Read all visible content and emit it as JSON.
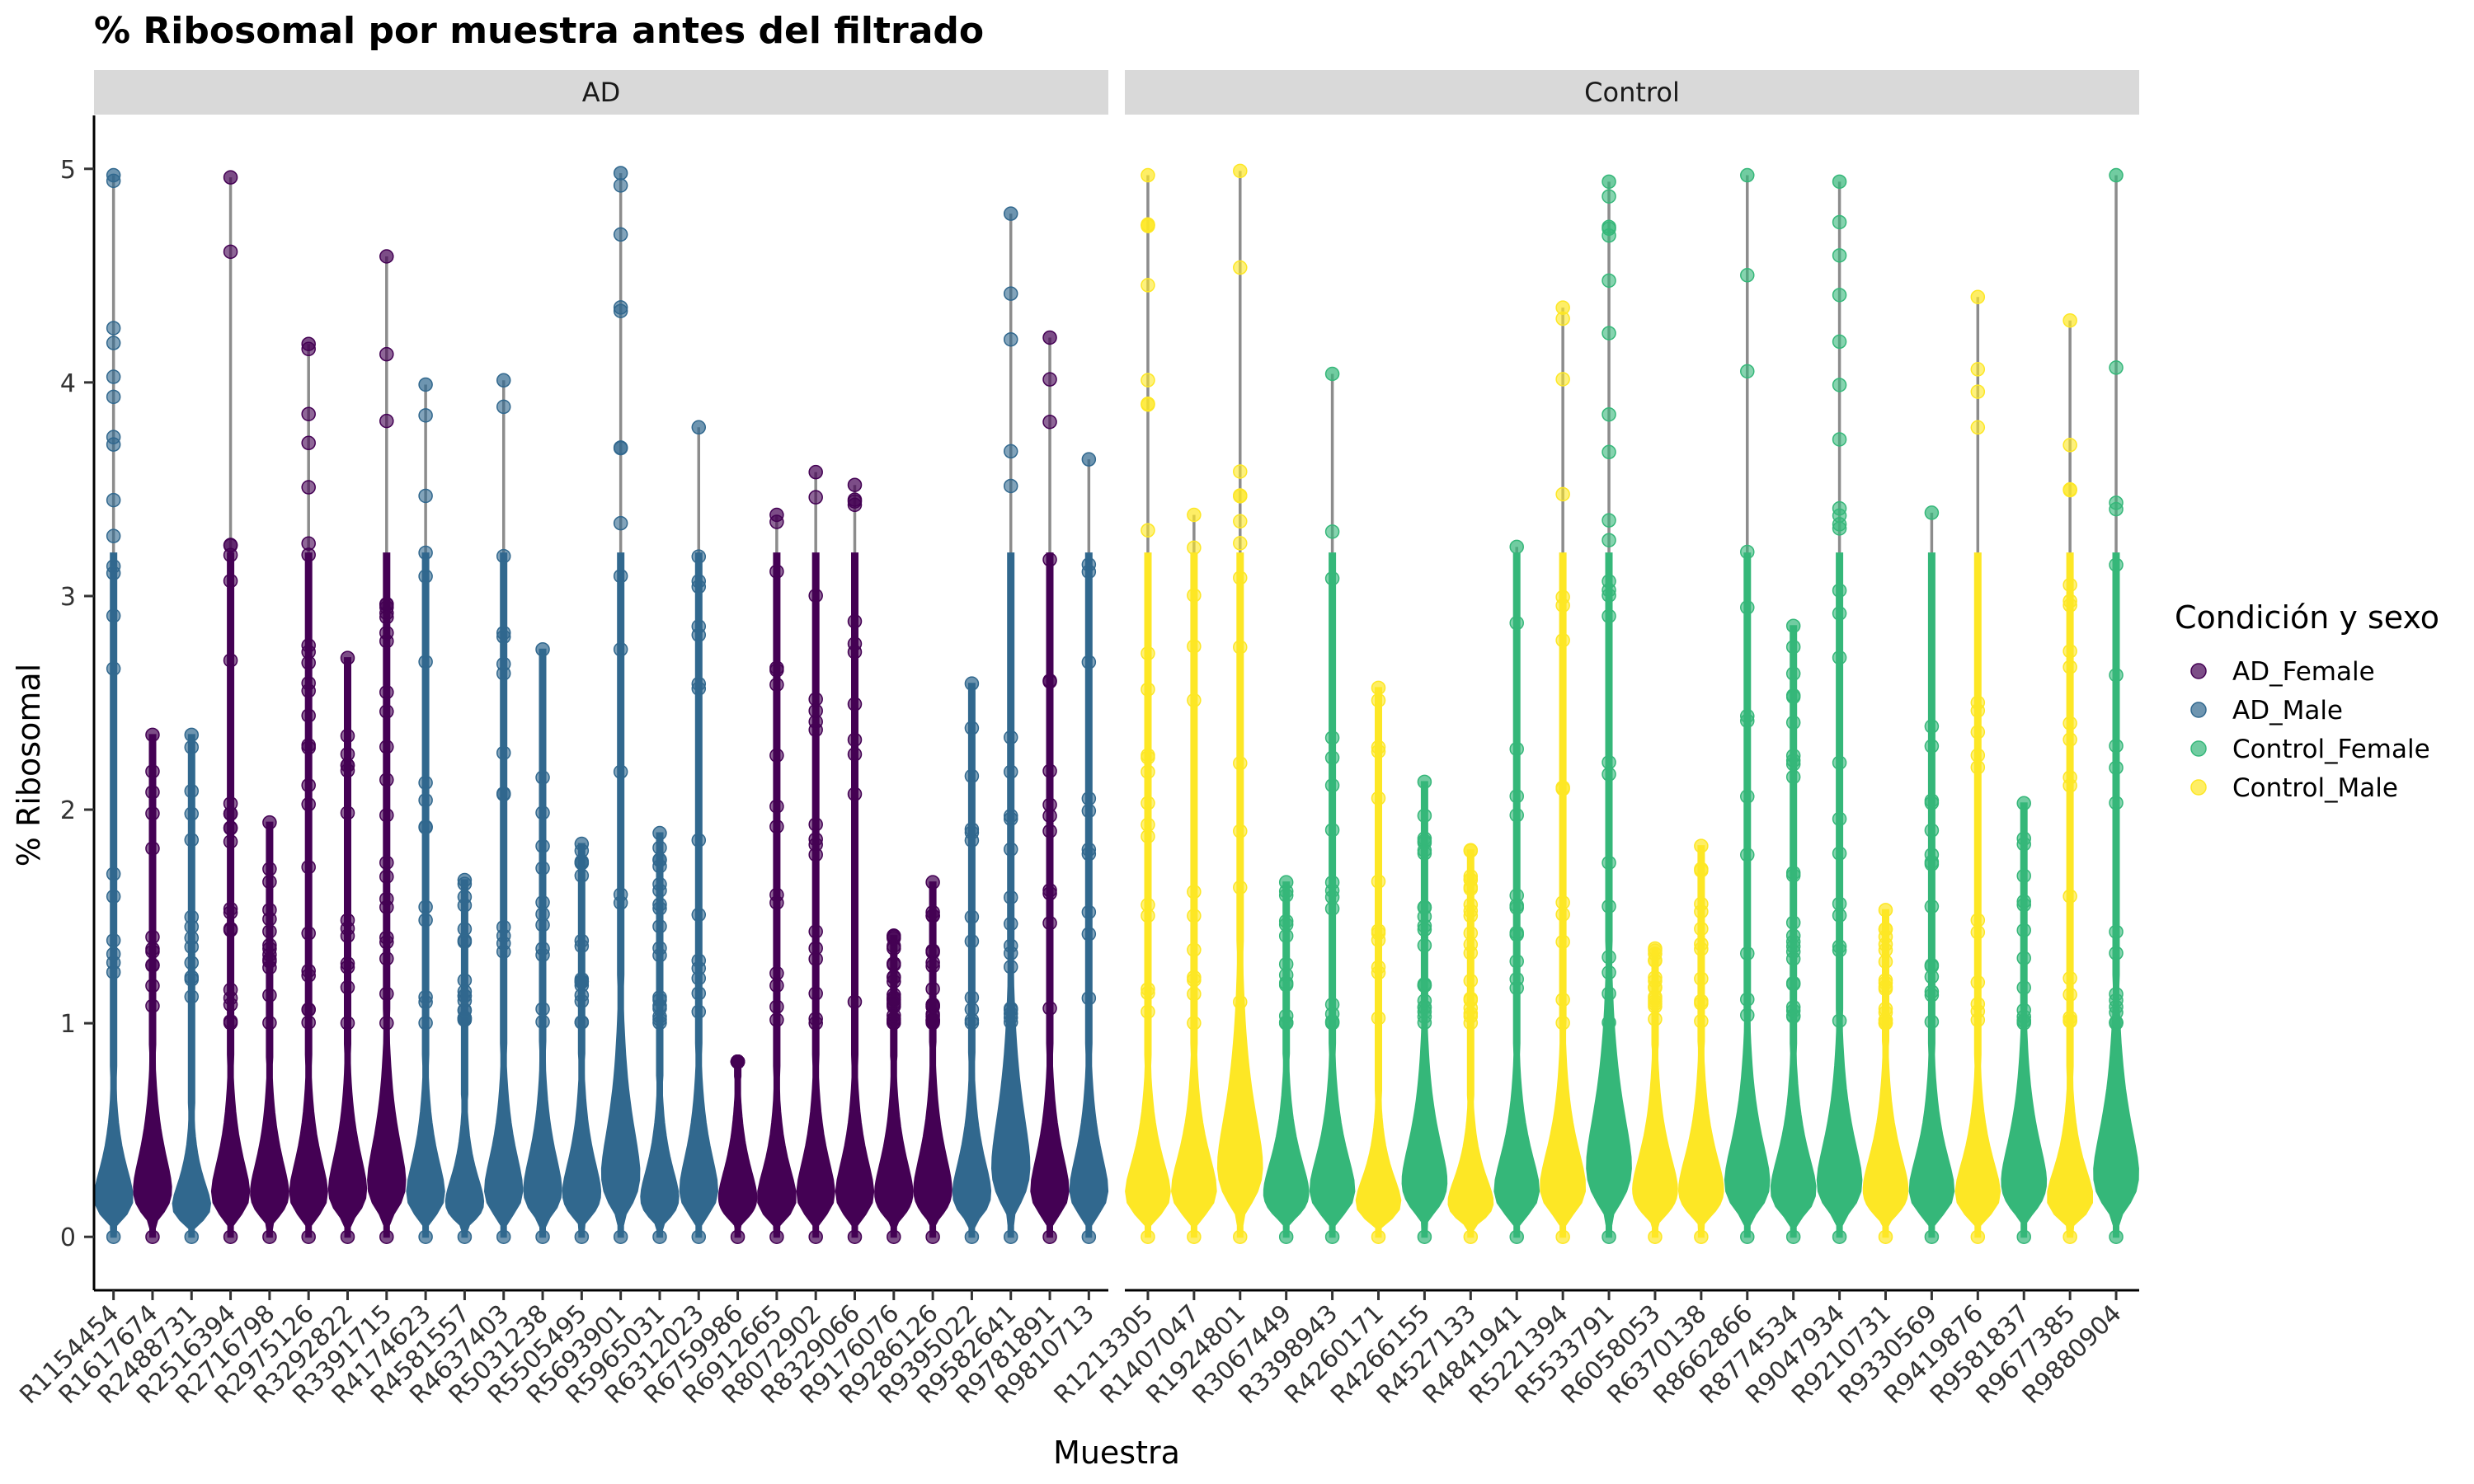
{
  "chart_data": {
    "type": "violin",
    "title": "% Ribosomal por muestra antes del filtrado",
    "xlabel": "Muestra",
    "ylabel": "% Ribosomal",
    "ylim": [
      -0.25,
      5.25
    ],
    "yticks": [
      0,
      1,
      2,
      3,
      4,
      5
    ],
    "grid": false,
    "legend_position": "right",
    "legend_title": "Condición y sexo",
    "legend": [
      {
        "name": "AD_Female",
        "color": "#440154"
      },
      {
        "name": "AD_Male",
        "color": "#31688E"
      },
      {
        "name": "Control_Female",
        "color": "#35B779"
      },
      {
        "name": "Control_Male",
        "color": "#FDE725"
      }
    ],
    "facets": [
      {
        "label": "AD",
        "samples": [
          {
            "name": "R1154454",
            "group": "AD_Male",
            "max": 4.97,
            "median": 0.25
          },
          {
            "name": "R1617674",
            "group": "AD_Female",
            "max": 2.35,
            "median": 0.3
          },
          {
            "name": "R2488731",
            "group": "AD_Male",
            "max": 2.35,
            "median": 0.2
          },
          {
            "name": "R2516394",
            "group": "AD_Female",
            "max": 4.96,
            "median": 0.28
          },
          {
            "name": "R2716798",
            "group": "AD_Female",
            "max": 1.94,
            "median": 0.28
          },
          {
            "name": "R2975126",
            "group": "AD_Female",
            "max": 4.18,
            "median": 0.28
          },
          {
            "name": "R3292822",
            "group": "AD_Female",
            "max": 2.71,
            "median": 0.3
          },
          {
            "name": "R3391715",
            "group": "AD_Female",
            "max": 4.59,
            "median": 0.35
          },
          {
            "name": "R4174623",
            "group": "AD_Male",
            "max": 3.99,
            "median": 0.28
          },
          {
            "name": "R4581557",
            "group": "AD_Male",
            "max": 1.67,
            "median": 0.22
          },
          {
            "name": "R4637403",
            "group": "AD_Male",
            "max": 4.01,
            "median": 0.3
          },
          {
            "name": "R5031238",
            "group": "AD_Male",
            "max": 2.75,
            "median": 0.3
          },
          {
            "name": "R5505495",
            "group": "AD_Male",
            "max": 1.84,
            "median": 0.28
          },
          {
            "name": "R5693901",
            "group": "AD_Male",
            "max": 4.98,
            "median": 0.4
          },
          {
            "name": "R5965031",
            "group": "AD_Male",
            "max": 1.89,
            "median": 0.25
          },
          {
            "name": "R6312023",
            "group": "AD_Male",
            "max": 3.79,
            "median": 0.3
          },
          {
            "name": "R6759986",
            "group": "AD_Female",
            "max": 0.82,
            "median": 0.25
          },
          {
            "name": "R6912665",
            "group": "AD_Female",
            "max": 3.38,
            "median": 0.25
          },
          {
            "name": "R8072902",
            "group": "AD_Female",
            "max": 3.58,
            "median": 0.28
          },
          {
            "name": "R8329066",
            "group": "AD_Female",
            "max": 3.52,
            "median": 0.28
          },
          {
            "name": "R9176076",
            "group": "AD_Female",
            "max": 1.41,
            "median": 0.28
          },
          {
            "name": "R9286126",
            "group": "AD_Female",
            "max": 1.66,
            "median": 0.3
          },
          {
            "name": "R9395022",
            "group": "AD_Male",
            "max": 2.59,
            "median": 0.28
          },
          {
            "name": "R9582641",
            "group": "AD_Male",
            "max": 4.79,
            "median": 0.45
          },
          {
            "name": "R9781891",
            "group": "AD_Female",
            "max": 4.21,
            "median": 0.3
          },
          {
            "name": "R9810713",
            "group": "AD_Male",
            "max": 3.64,
            "median": 0.3
          }
        ]
      },
      {
        "label": "Control",
        "samples": [
          {
            "name": "R1213305",
            "group": "Control_Male",
            "max": 4.97,
            "median": 0.28
          },
          {
            "name": "R1407047",
            "group": "Control_Male",
            "max": 3.38,
            "median": 0.3
          },
          {
            "name": "R1924801",
            "group": "Control_Male",
            "max": 4.99,
            "median": 0.45
          },
          {
            "name": "R3067449",
            "group": "Control_Female",
            "max": 1.66,
            "median": 0.28
          },
          {
            "name": "R3398943",
            "group": "Control_Female",
            "max": 4.04,
            "median": 0.3
          },
          {
            "name": "R4260171",
            "group": "Control_Male",
            "max": 2.57,
            "median": 0.22
          },
          {
            "name": "R4266155",
            "group": "Control_Female",
            "max": 2.13,
            "median": 0.35
          },
          {
            "name": "R4527133",
            "group": "Control_Male",
            "max": 1.81,
            "median": 0.22
          },
          {
            "name": "R4841941",
            "group": "Control_Female",
            "max": 3.23,
            "median": 0.3
          },
          {
            "name": "R5221394",
            "group": "Control_Male",
            "max": 4.35,
            "median": 0.32
          },
          {
            "name": "R5533791",
            "group": "Control_Female",
            "max": 4.94,
            "median": 0.45
          },
          {
            "name": "R6058053",
            "group": "Control_Male",
            "max": 1.35,
            "median": 0.3
          },
          {
            "name": "R6370138",
            "group": "Control_Male",
            "max": 1.83,
            "median": 0.3
          },
          {
            "name": "R8662866",
            "group": "Control_Female",
            "max": 4.97,
            "median": 0.35
          },
          {
            "name": "R8774534",
            "group": "Control_Female",
            "max": 2.86,
            "median": 0.3
          },
          {
            "name": "R9047934",
            "group": "Control_Female",
            "max": 4.94,
            "median": 0.35
          },
          {
            "name": "R9210731",
            "group": "Control_Male",
            "max": 1.53,
            "median": 0.3
          },
          {
            "name": "R9330569",
            "group": "Control_Female",
            "max": 3.39,
            "median": 0.3
          },
          {
            "name": "R9419876",
            "group": "Control_Male",
            "max": 4.4,
            "median": 0.28
          },
          {
            "name": "R9581837",
            "group": "Control_Female",
            "max": 2.03,
            "median": 0.35
          },
          {
            "name": "R9677385",
            "group": "Control_Male",
            "max": 4.29,
            "median": 0.25
          },
          {
            "name": "R9880904",
            "group": "Control_Female",
            "max": 4.97,
            "median": 0.4
          }
        ]
      }
    ]
  }
}
